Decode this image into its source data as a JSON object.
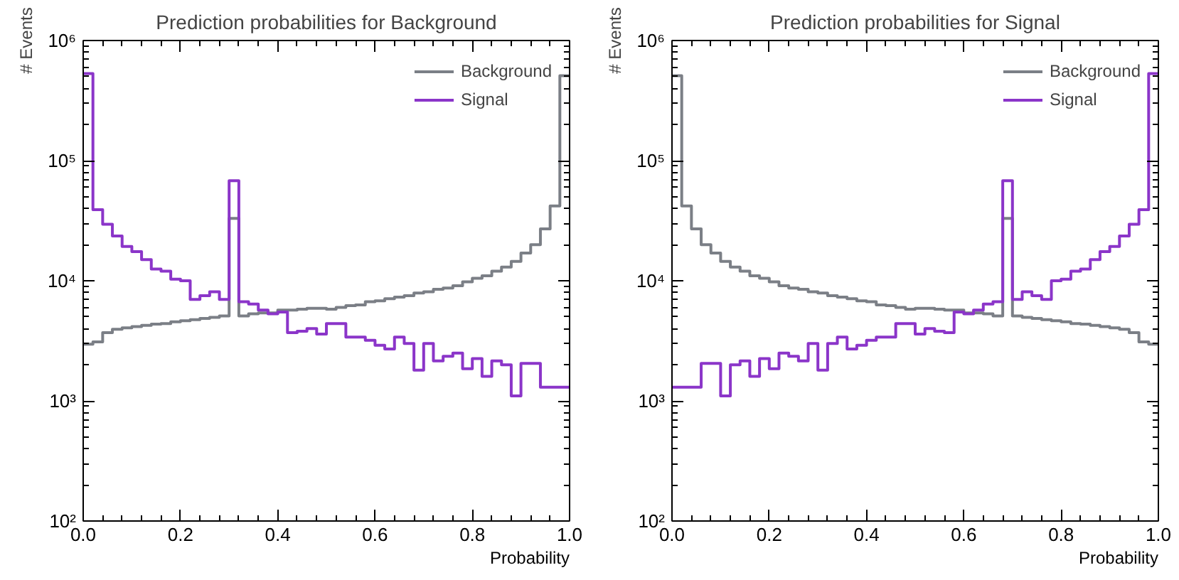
{
  "chart_data": [
    {
      "type": "histogram",
      "title": "Prediction probabilities for Background",
      "xlabel": "Probability",
      "ylabel": "# Events",
      "bins": [
        0,
        0.02,
        0.04,
        0.06,
        0.08,
        0.1,
        0.12,
        0.14,
        0.16,
        0.18,
        0.2,
        0.22,
        0.24,
        0.26,
        0.28,
        0.3,
        0.32,
        0.34,
        0.36,
        0.38,
        0.4,
        0.42,
        0.44,
        0.46,
        0.48,
        0.5,
        0.52,
        0.54,
        0.56,
        0.58,
        0.6,
        0.62,
        0.64,
        0.66,
        0.68,
        0.7,
        0.72,
        0.74,
        0.76,
        0.78,
        0.8,
        0.82,
        0.84,
        0.86,
        0.88,
        0.9,
        0.92,
        0.94,
        0.96,
        0.98,
        1.0
      ],
      "series": [
        {
          "name": "Background",
          "color": "#7b7f86",
          "values": [
            2960,
            3100,
            3700,
            3950,
            4050,
            4150,
            4250,
            4350,
            4400,
            4550,
            4650,
            4750,
            4850,
            4950,
            5100,
            33000,
            5100,
            5300,
            5400,
            5400,
            5700,
            5700,
            5800,
            5900,
            5900,
            5800,
            6000,
            6200,
            6300,
            6700,
            6800,
            7100,
            7300,
            7500,
            7900,
            8100,
            8500,
            8700,
            9100,
            9800,
            10500,
            11000,
            12000,
            13000,
            14500,
            17000,
            20000,
            27000,
            42000,
            510000
          ]
        },
        {
          "name": "Signal",
          "color": "#8b35c9",
          "values": [
            530000,
            39000,
            29500,
            23600,
            19300,
            17500,
            15000,
            12500,
            12000,
            10300,
            10000,
            7000,
            7500,
            8100,
            7000,
            68000,
            6700,
            6400,
            5700,
            5300,
            5500,
            3700,
            3800,
            4000,
            3600,
            4400,
            4400,
            3400,
            3400,
            3200,
            2900,
            2700,
            3400,
            3000,
            1800,
            3000,
            2150,
            2350,
            2500,
            1850,
            2250,
            1600,
            2150,
            2000,
            1100,
            2050,
            2050,
            1300,
            1300,
            1300
          ]
        }
      ],
      "log": "y",
      "xlim": [
        0,
        1
      ],
      "ylim": [
        100,
        1000000
      ],
      "xticks": [
        {
          "value": 0,
          "label": "0.0"
        },
        {
          "value": 0.2,
          "label": "0.2"
        },
        {
          "value": 0.4,
          "label": "0.4"
        },
        {
          "value": 0.6,
          "label": "0.6"
        },
        {
          "value": 0.8,
          "label": "0.8"
        },
        {
          "value": 1,
          "label": "1.0"
        }
      ],
      "yticks": [
        {
          "value": 100,
          "label": "10²"
        },
        {
          "value": 1000,
          "label": "10³"
        },
        {
          "value": 10000,
          "label": "10⁴"
        },
        {
          "value": 100000,
          "label": "10⁵"
        },
        {
          "value": 1000000,
          "label": "10⁶"
        }
      ],
      "legend": "top right",
      "grid": false
    },
    {
      "type": "histogram",
      "title": "Prediction probabilities for Signal",
      "xlabel": "Probability",
      "ylabel": "# Events",
      "bins": [
        0,
        0.02,
        0.04,
        0.06,
        0.08,
        0.1,
        0.12,
        0.14,
        0.16,
        0.18,
        0.2,
        0.22,
        0.24,
        0.26,
        0.28,
        0.3,
        0.32,
        0.34,
        0.36,
        0.38,
        0.4,
        0.42,
        0.44,
        0.46,
        0.48,
        0.5,
        0.52,
        0.54,
        0.56,
        0.58,
        0.6,
        0.62,
        0.64,
        0.66,
        0.68,
        0.7,
        0.72,
        0.74,
        0.76,
        0.78,
        0.8,
        0.82,
        0.84,
        0.86,
        0.88,
        0.9,
        0.92,
        0.94,
        0.96,
        0.98,
        1.0
      ],
      "series": [
        {
          "name": "Background",
          "color": "#7b7f86",
          "values": [
            510000,
            42000,
            27000,
            20000,
            17000,
            14500,
            13000,
            12000,
            11000,
            10500,
            9800,
            9100,
            8700,
            8500,
            8100,
            7900,
            7500,
            7300,
            7100,
            6800,
            6700,
            6300,
            6200,
            6000,
            5800,
            5900,
            5900,
            5800,
            5700,
            5700,
            5400,
            5400,
            5300,
            5100,
            33000,
            5100,
            4950,
            4850,
            4750,
            4650,
            4550,
            4400,
            4350,
            4250,
            4150,
            4050,
            3950,
            3700,
            3100,
            2960
          ]
        },
        {
          "name": "Signal",
          "color": "#8b35c9",
          "values": [
            1300,
            1300,
            1300,
            2050,
            2050,
            1100,
            2000,
            2150,
            1600,
            2250,
            1850,
            2500,
            2350,
            2150,
            3000,
            1800,
            3000,
            3400,
            2700,
            2900,
            3200,
            3400,
            3400,
            4400,
            4400,
            3600,
            4000,
            3800,
            3700,
            5500,
            5300,
            5700,
            6400,
            6700,
            68000,
            7000,
            8100,
            7500,
            7000,
            10000,
            10300,
            12000,
            12500,
            15000,
            17500,
            19300,
            23600,
            29500,
            39000,
            530000
          ]
        }
      ],
      "log": "y",
      "xlim": [
        0,
        1
      ],
      "ylim": [
        100,
        1000000
      ],
      "xticks": [
        {
          "value": 0,
          "label": "0.0"
        },
        {
          "value": 0.2,
          "label": "0.2"
        },
        {
          "value": 0.4,
          "label": "0.4"
        },
        {
          "value": 0.6,
          "label": "0.6"
        },
        {
          "value": 0.8,
          "label": "0.8"
        },
        {
          "value": 1,
          "label": "1.0"
        }
      ],
      "yticks": [
        {
          "value": 100,
          "label": "10²"
        },
        {
          "value": 1000,
          "label": "10³"
        },
        {
          "value": 10000,
          "label": "10⁴"
        },
        {
          "value": 100000,
          "label": "10⁵"
        },
        {
          "value": 1000000,
          "label": "10⁶"
        }
      ],
      "legend": "top right",
      "grid": false
    }
  ]
}
